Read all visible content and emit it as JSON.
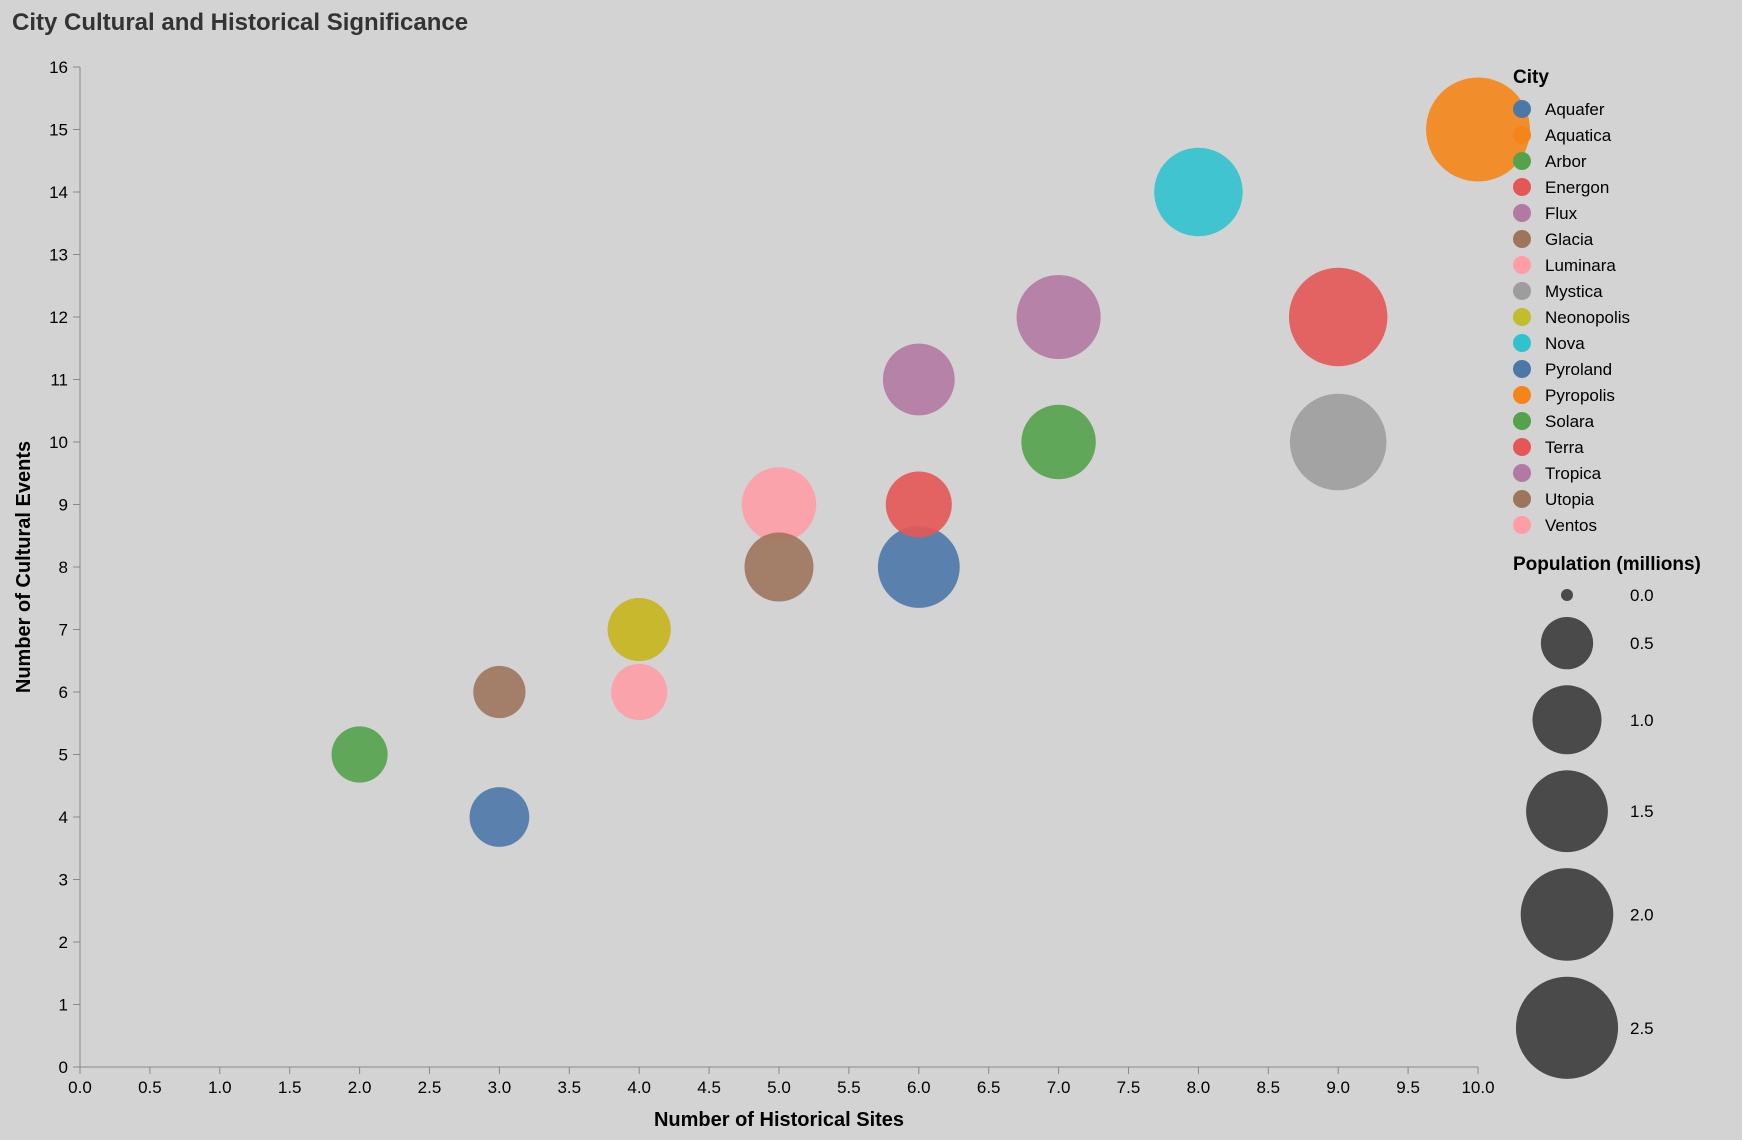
{
  "chart_data": {
    "type": "scatter",
    "title": "City Cultural and Historical Significance",
    "xlabel": "Number of Historical Sites",
    "ylabel": "Number of Cultural Events",
    "xlim": [
      0,
      10
    ],
    "ylim": [
      0,
      16
    ],
    "x_ticks": [
      "0.0",
      "0.5",
      "1.0",
      "1.5",
      "2.0",
      "2.5",
      "3.0",
      "3.5",
      "4.0",
      "4.5",
      "5.0",
      "5.5",
      "6.0",
      "6.5",
      "7.0",
      "7.5",
      "8.0",
      "8.5",
      "9.0",
      "9.5",
      "10.0"
    ],
    "y_ticks": [
      "0",
      "1",
      "2",
      "3",
      "4",
      "5",
      "6",
      "7",
      "8",
      "9",
      "10",
      "11",
      "12",
      "13",
      "14",
      "15",
      "16"
    ],
    "grid": false,
    "legend_placement": "right",
    "color_legend_title": "City",
    "size_legend_title": "Population (millions)",
    "size_legend_values": [
      0.0,
      0.5,
      1.0,
      1.5,
      2.0,
      2.5
    ],
    "size_legend_labels": [
      "0.0",
      "0.5",
      "1.0",
      "1.5",
      "2.0",
      "2.5"
    ],
    "cities": [
      {
        "name": "Aquafer",
        "color": "#4c78a8"
      },
      {
        "name": "Aquatica",
        "color": "#f58518"
      },
      {
        "name": "Arbor",
        "color": "#54a24b"
      },
      {
        "name": "Energon",
        "color": "#e45756"
      },
      {
        "name": "Flux",
        "color": "#b279a2"
      },
      {
        "name": "Glacia",
        "color": "#9d755d"
      },
      {
        "name": "Luminara",
        "color": "#ff9da6"
      },
      {
        "name": "Mystica",
        "color": "#9d9d9d"
      },
      {
        "name": "Neonopolis",
        "color": "#c2bc2f"
      },
      {
        "name": "Nova",
        "color": "#2fc2cf"
      },
      {
        "name": "Pyroland",
        "color": "#4c78a8"
      },
      {
        "name": "Pyropolis",
        "color": "#f58518"
      },
      {
        "name": "Solara",
        "color": "#54a24b"
      },
      {
        "name": "Terra",
        "color": "#e45756"
      },
      {
        "name": "Tropica",
        "color": "#b279a2"
      },
      {
        "name": "Utopia",
        "color": "#9d755d"
      },
      {
        "name": "Ventos",
        "color": "#ff9da6"
      }
    ],
    "points": [
      {
        "city": "Pyroland",
        "x": 6,
        "y": 8,
        "population": 1.5
      },
      {
        "city": "Pyropolis",
        "x": 10,
        "y": 15,
        "population": 2.6
      },
      {
        "city": "Arbor",
        "x": 2,
        "y": 5,
        "population": 0.6
      },
      {
        "city": "Energon",
        "x": 9,
        "y": 12,
        "population": 2.3
      },
      {
        "city": "Flux",
        "x": 7,
        "y": 12,
        "population": 1.6
      },
      {
        "city": "Glacia",
        "x": 3,
        "y": 6,
        "population": 0.5
      },
      {
        "city": "Luminara",
        "x": 5,
        "y": 9,
        "population": 1.2
      },
      {
        "city": "Mystica",
        "x": 9,
        "y": 10,
        "population": 2.2
      },
      {
        "city": "Aquatica",
        "x": 4,
        "y": 7,
        "population": 0.8
      },
      {
        "city": "Neonopolis",
        "x": 4,
        "y": 7,
        "population": 0.8
      },
      {
        "city": "Nova",
        "x": 8,
        "y": 14,
        "population": 1.8
      },
      {
        "city": "Aquafer",
        "x": 3,
        "y": 4,
        "population": 0.7
      },
      {
        "city": "Solara",
        "x": 7,
        "y": 10,
        "population": 1.2
      },
      {
        "city": "Terra",
        "x": 6,
        "y": 9,
        "population": 0.9
      },
      {
        "city": "Tropica",
        "x": 6,
        "y": 11,
        "population": 1.1
      },
      {
        "city": "Utopia",
        "x": 5,
        "y": 8,
        "population": 1.0
      },
      {
        "city": "Ventos",
        "x": 4,
        "y": 6,
        "population": 0.6
      }
    ]
  }
}
